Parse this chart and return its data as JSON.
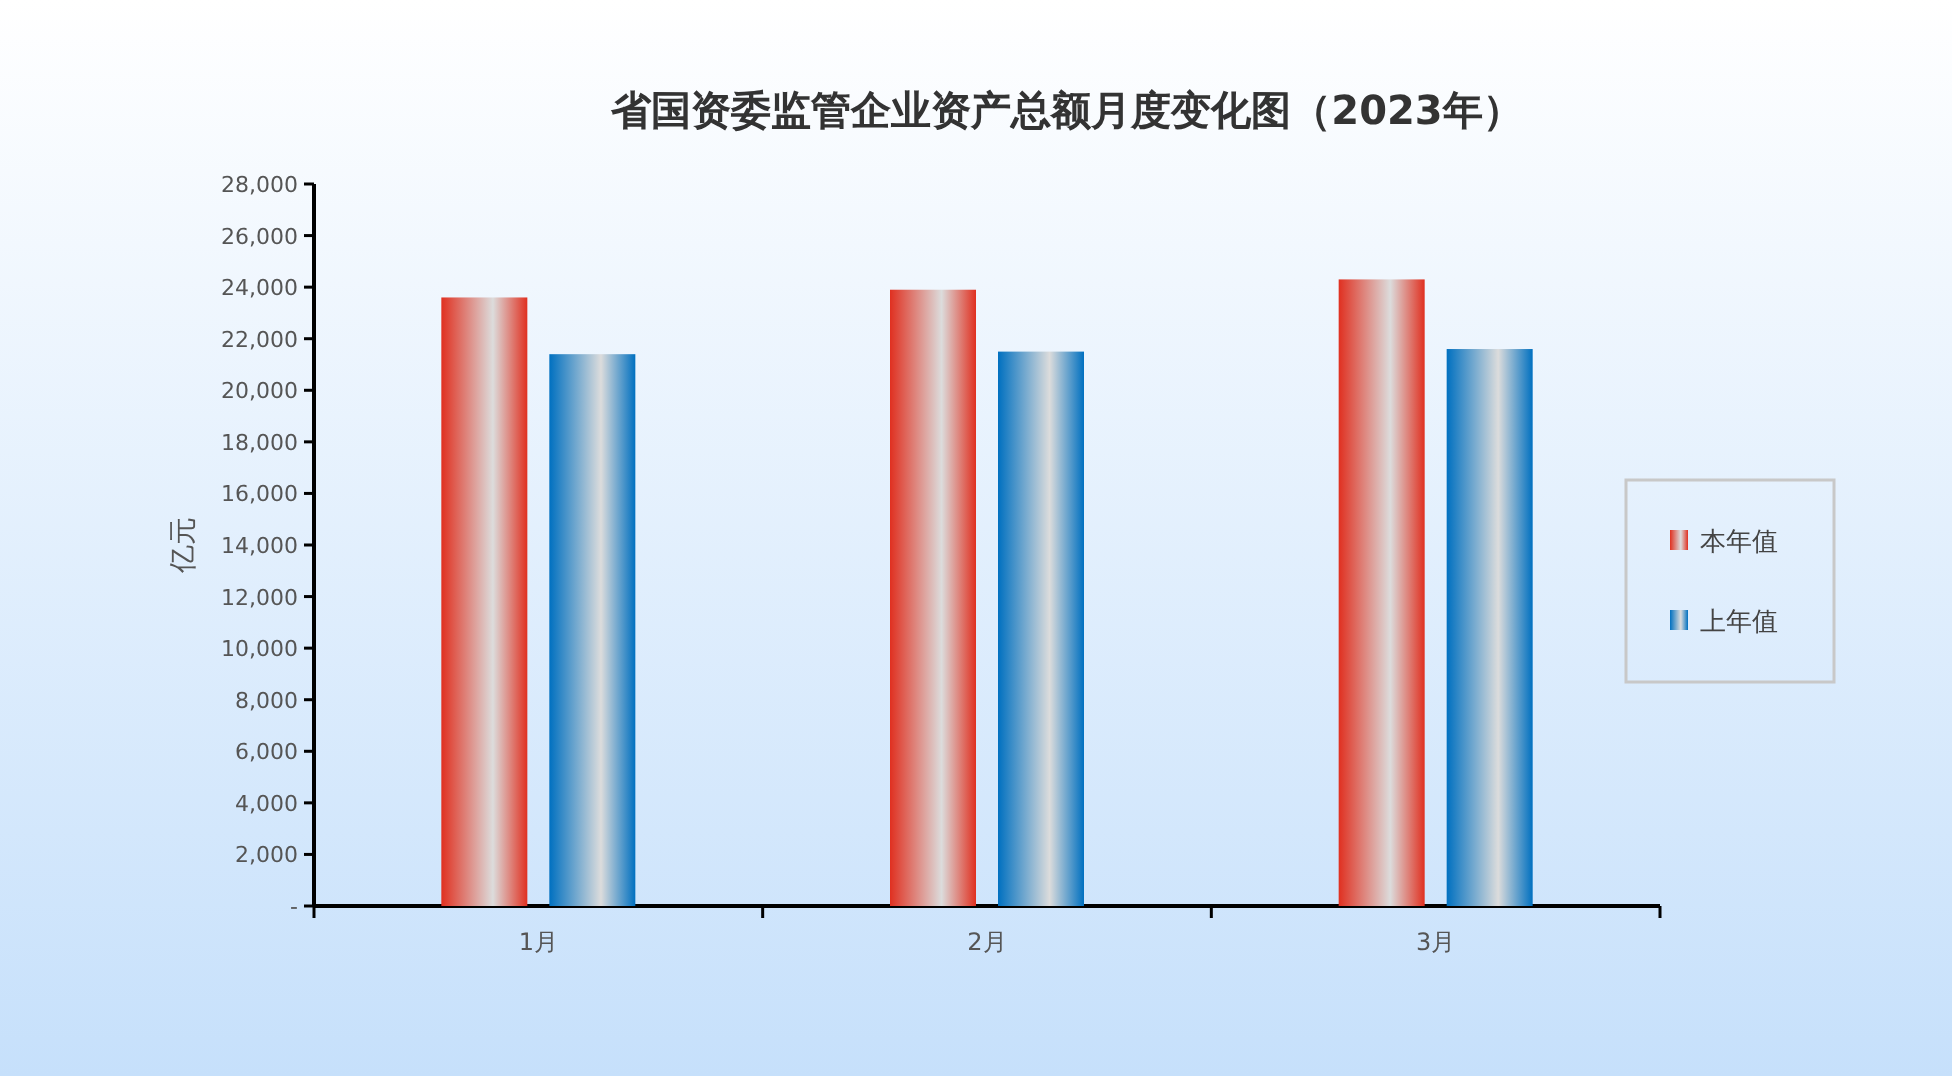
{
  "chart_data": {
    "type": "bar",
    "title": "省国资委监管企业资产总额月度变化图（2023年）",
    "ylabel": "亿元",
    "categories": [
      "1月",
      "2月",
      "3月"
    ],
    "series": [
      {
        "name": "本年值",
        "color": "#e03020",
        "values": [
          23600,
          23900,
          24300
        ]
      },
      {
        "name": "上年值",
        "color": "#0070c0",
        "values": [
          21400,
          21500,
          21600
        ]
      }
    ],
    "ylim": [
      0,
      28000
    ],
    "yticks": [
      {
        "value": 0,
        "label": "-"
      },
      {
        "value": 2000,
        "label": "2,000"
      },
      {
        "value": 4000,
        "label": "4,000"
      },
      {
        "value": 6000,
        "label": "6,000"
      },
      {
        "value": 8000,
        "label": "8,000"
      },
      {
        "value": 10000,
        "label": "10,000"
      },
      {
        "value": 12000,
        "label": "12,000"
      },
      {
        "value": 14000,
        "label": "14,000"
      },
      {
        "value": 16000,
        "label": "16,000"
      },
      {
        "value": 18000,
        "label": "18,000"
      },
      {
        "value": 20000,
        "label": "20,000"
      },
      {
        "value": 22000,
        "label": "22,000"
      },
      {
        "value": 24000,
        "label": "24,000"
      },
      {
        "value": 26000,
        "label": "26,000"
      },
      {
        "value": 28000,
        "label": "28,000"
      }
    ],
    "grid": false,
    "legend": "right"
  }
}
